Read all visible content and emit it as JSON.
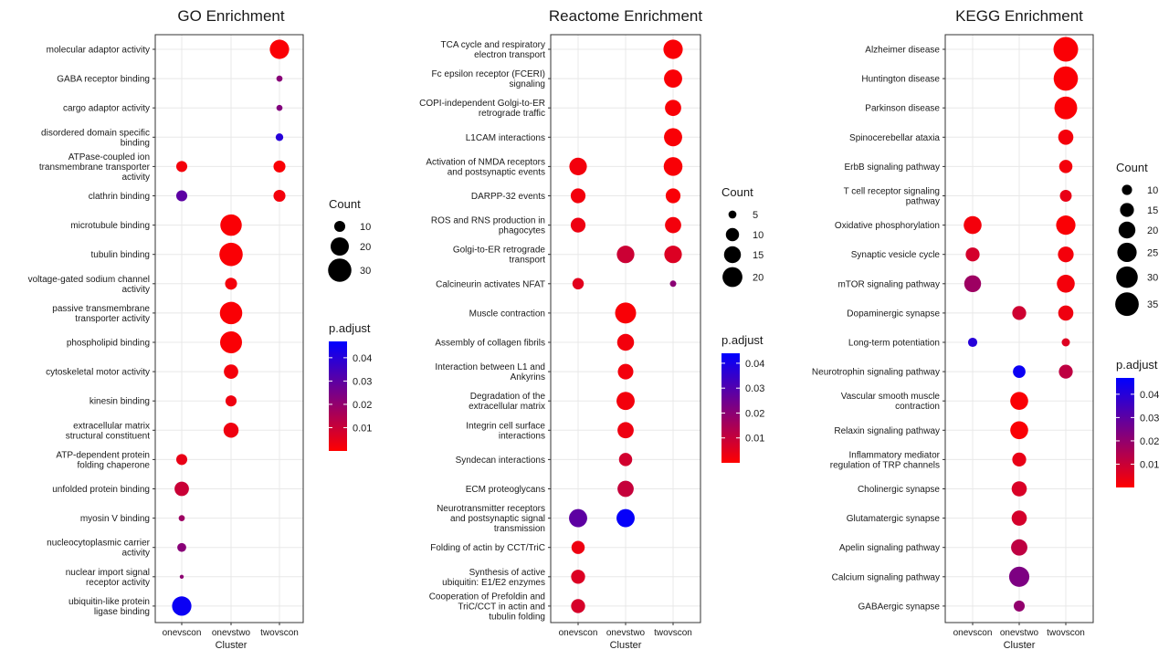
{
  "chart_data": [
    {
      "type": "scatter",
      "title": "GO Enrichment",
      "xlabel": "Cluster",
      "x_categories": [
        "onevscon",
        "onevstwo",
        "twovscon"
      ],
      "y_categories": [
        "molecular adaptor activity",
        "GABA receptor binding",
        "cargo adaptor activity",
        "disordered domain specific\nbinding",
        "ATPase-coupled ion\ntransmembrane transporter\nactivity",
        "clathrin binding",
        "microtubule binding",
        "tubulin binding",
        "voltage-gated sodium channel\nactivity",
        "passive transmembrane\ntransporter activity",
        "phospholipid binding",
        "cytoskeletal motor activity",
        "kinesin binding",
        "extracellular matrix\nstructural constituent",
        "ATP-dependent protein\nfolding chaperone",
        "unfolded protein binding",
        "myosin V binding",
        "nucleocytoplasmic carrier\nactivity",
        "nuclear import signal\nreceptor activity",
        "ubiquitin-like protein\nligase binding"
      ],
      "points": [
        {
          "x": "twovscon",
          "y": 0,
          "count": 22,
          "p_adjust": 0.001
        },
        {
          "x": "twovscon",
          "y": 1,
          "count": 6,
          "p_adjust": 0.022
        },
        {
          "x": "twovscon",
          "y": 2,
          "count": 6,
          "p_adjust": 0.023
        },
        {
          "x": "twovscon",
          "y": 3,
          "count": 7,
          "p_adjust": 0.04
        },
        {
          "x": "onevscon",
          "y": 4,
          "count": 10,
          "p_adjust": 0.002
        },
        {
          "x": "twovscon",
          "y": 4,
          "count": 11,
          "p_adjust": 0.001
        },
        {
          "x": "onevscon",
          "y": 5,
          "count": 10,
          "p_adjust": 0.03
        },
        {
          "x": "twovscon",
          "y": 5,
          "count": 11,
          "p_adjust": 0.002
        },
        {
          "x": "onevstwo",
          "y": 6,
          "count": 26,
          "p_adjust": 0.001
        },
        {
          "x": "onevstwo",
          "y": 7,
          "count": 30,
          "p_adjust": 0.001
        },
        {
          "x": "onevstwo",
          "y": 8,
          "count": 11,
          "p_adjust": 0.002
        },
        {
          "x": "onevstwo",
          "y": 9,
          "count": 28,
          "p_adjust": 0.001
        },
        {
          "x": "onevstwo",
          "y": 10,
          "count": 27,
          "p_adjust": 0.001
        },
        {
          "x": "onevstwo",
          "y": 11,
          "count": 14,
          "p_adjust": 0.002
        },
        {
          "x": "onevstwo",
          "y": 12,
          "count": 10,
          "p_adjust": 0.003
        },
        {
          "x": "onevstwo",
          "y": 13,
          "count": 15,
          "p_adjust": 0.003
        },
        {
          "x": "onevscon",
          "y": 14,
          "count": 10,
          "p_adjust": 0.004
        },
        {
          "x": "onevscon",
          "y": 15,
          "count": 14,
          "p_adjust": 0.01
        },
        {
          "x": "onevscon",
          "y": 16,
          "count": 6,
          "p_adjust": 0.018
        },
        {
          "x": "onevscon",
          "y": 17,
          "count": 8,
          "p_adjust": 0.022
        },
        {
          "x": "onevscon",
          "y": 18,
          "count": 5,
          "p_adjust": 0.021
        },
        {
          "x": "onevscon",
          "y": 19,
          "count": 22,
          "p_adjust": 0.045
        }
      ],
      "size_legend": {
        "title": "Count",
        "values": [
          10,
          20,
          30
        ]
      },
      "color_legend": {
        "title": "p.adjust",
        "ticks": [
          0.01,
          0.02,
          0.03,
          0.04
        ],
        "tick_labels": [
          "0.01",
          "0.02",
          "0.03",
          "0.04"
        ],
        "range": [
          0.0,
          0.047
        ],
        "low_color": "#ff0000",
        "high_color": "#0000ff"
      },
      "grid": true,
      "legend_position": "right"
    },
    {
      "type": "scatter",
      "title": "Reactome Enrichment",
      "xlabel": "Cluster",
      "x_categories": [
        "onevscon",
        "onevstwo",
        "twovscon"
      ],
      "y_categories": [
        "TCA cycle and respiratory\nelectron transport",
        "Fc epsilon receptor (FCERI)\nsignaling",
        "COPI-independent Golgi-to-ER\nretrograde traffic",
        "L1CAM interactions",
        "Activation of NMDA receptors\nand postsynaptic events",
        "DARPP-32 events",
        "ROS and RNS production in\nphagocytes",
        "Golgi-to-ER retrograde\ntransport",
        "Calcineurin activates NFAT",
        "Muscle contraction",
        "Assembly of collagen fibrils",
        "Interaction between L1 and\nAnkyrins",
        "Degradation of the\nextracellular matrix",
        "Integrin cell surface\ninteractions",
        "Syndecan interactions",
        "ECM proteoglycans",
        "Neurotransmitter receptors\nand postsynaptic signal\ntransmission",
        "Folding of actin by CCT/TriC",
        "Synthesis of active\nubiquitin: E1/E2 enzymes",
        "Cooperation of Prefoldin and\nTriC/CCT  in actin and\ntubulin folding"
      ],
      "points": [
        {
          "x": "twovscon",
          "y": 0,
          "count": 19,
          "p_adjust": 0.001
        },
        {
          "x": "twovscon",
          "y": 1,
          "count": 17,
          "p_adjust": 0.001
        },
        {
          "x": "twovscon",
          "y": 2,
          "count": 14,
          "p_adjust": 0.001
        },
        {
          "x": "twovscon",
          "y": 3,
          "count": 17,
          "p_adjust": 0.001
        },
        {
          "x": "onevscon",
          "y": 4,
          "count": 16,
          "p_adjust": 0.002
        },
        {
          "x": "twovscon",
          "y": 4,
          "count": 18,
          "p_adjust": 0.001
        },
        {
          "x": "onevscon",
          "y": 5,
          "count": 12,
          "p_adjust": 0.002
        },
        {
          "x": "twovscon",
          "y": 5,
          "count": 12,
          "p_adjust": 0.001
        },
        {
          "x": "onevscon",
          "y": 6,
          "count": 12,
          "p_adjust": 0.003
        },
        {
          "x": "twovscon",
          "y": 6,
          "count": 14,
          "p_adjust": 0.002
        },
        {
          "x": "onevstwo",
          "y": 7,
          "count": 16,
          "p_adjust": 0.009
        },
        {
          "x": "twovscon",
          "y": 7,
          "count": 16,
          "p_adjust": 0.006
        },
        {
          "x": "onevscon",
          "y": 8,
          "count": 8,
          "p_adjust": 0.005
        },
        {
          "x": "twovscon",
          "y": 8,
          "count": 4,
          "p_adjust": 0.02
        },
        {
          "x": "onevstwo",
          "y": 9,
          "count": 22,
          "p_adjust": 0.001
        },
        {
          "x": "onevstwo",
          "y": 10,
          "count": 15,
          "p_adjust": 0.002
        },
        {
          "x": "onevstwo",
          "y": 11,
          "count": 13,
          "p_adjust": 0.002
        },
        {
          "x": "onevstwo",
          "y": 12,
          "count": 17,
          "p_adjust": 0.002
        },
        {
          "x": "onevstwo",
          "y": 13,
          "count": 14,
          "p_adjust": 0.003
        },
        {
          "x": "onevstwo",
          "y": 14,
          "count": 10,
          "p_adjust": 0.008
        },
        {
          "x": "onevstwo",
          "y": 15,
          "count": 14,
          "p_adjust": 0.01
        },
        {
          "x": "onevscon",
          "y": 16,
          "count": 17,
          "p_adjust": 0.028
        },
        {
          "x": "onevstwo",
          "y": 16,
          "count": 17,
          "p_adjust": 0.043
        },
        {
          "x": "onevscon",
          "y": 17,
          "count": 10,
          "p_adjust": 0.003
        },
        {
          "x": "onevscon",
          "y": 18,
          "count": 11,
          "p_adjust": 0.006
        },
        {
          "x": "onevscon",
          "y": 19,
          "count": 11,
          "p_adjust": 0.007
        }
      ],
      "size_legend": {
        "title": "Count",
        "values": [
          5,
          10,
          15,
          20
        ]
      },
      "color_legend": {
        "title": "p.adjust",
        "ticks": [
          0.01,
          0.02,
          0.03,
          0.04
        ],
        "tick_labels": [
          "0.01",
          "0.02",
          "0.03",
          "0.04"
        ],
        "range": [
          0.0,
          0.044
        ],
        "low_color": "#ff0000",
        "high_color": "#0000ff"
      },
      "grid": true,
      "legend_position": "right"
    },
    {
      "type": "scatter",
      "title": "KEGG Enrichment",
      "xlabel": "Cluster",
      "x_categories": [
        "onevscon",
        "onevstwo",
        "twovscon"
      ],
      "y_categories": [
        "Alzheimer disease",
        "Huntington disease",
        "Parkinson disease",
        "Spinocerebellar ataxia",
        "ErbB signaling pathway",
        "T cell receptor signaling\npathway",
        "Oxidative phosphorylation",
        "Synaptic vesicle cycle",
        "mTOR signaling pathway",
        "Dopaminergic synapse",
        "Long-term potentiation",
        "Neurotrophin signaling pathway",
        "Vascular smooth muscle\ncontraction",
        "Relaxin signaling pathway",
        "Inflammatory mediator\nregulation of TRP channels",
        "Cholinergic synapse",
        "Glutamatergic synapse",
        "Apelin signaling pathway",
        "Calcium signaling pathway",
        "GABAergic synapse"
      ],
      "points": [
        {
          "x": "twovscon",
          "y": 0,
          "count": 38,
          "p_adjust": 0.001
        },
        {
          "x": "twovscon",
          "y": 1,
          "count": 37,
          "p_adjust": 0.001
        },
        {
          "x": "twovscon",
          "y": 2,
          "count": 33,
          "p_adjust": 0.001
        },
        {
          "x": "twovscon",
          "y": 3,
          "count": 17,
          "p_adjust": 0.002
        },
        {
          "x": "twovscon",
          "y": 4,
          "count": 14,
          "p_adjust": 0.002
        },
        {
          "x": "twovscon",
          "y": 5,
          "count": 12,
          "p_adjust": 0.004
        },
        {
          "x": "onevscon",
          "y": 6,
          "count": 22,
          "p_adjust": 0.002
        },
        {
          "x": "twovscon",
          "y": 6,
          "count": 25,
          "p_adjust": 0.001
        },
        {
          "x": "onevscon",
          "y": 7,
          "count": 15,
          "p_adjust": 0.008
        },
        {
          "x": "twovscon",
          "y": 7,
          "count": 18,
          "p_adjust": 0.002
        },
        {
          "x": "onevscon",
          "y": 8,
          "count": 20,
          "p_adjust": 0.018
        },
        {
          "x": "twovscon",
          "y": 8,
          "count": 22,
          "p_adjust": 0.002
        },
        {
          "x": "onevstwo",
          "y": 9,
          "count": 15,
          "p_adjust": 0.009
        },
        {
          "x": "twovscon",
          "y": 9,
          "count": 17,
          "p_adjust": 0.003
        },
        {
          "x": "onevscon",
          "y": 10,
          "count": 9,
          "p_adjust": 0.04
        },
        {
          "x": "twovscon",
          "y": 10,
          "count": 8,
          "p_adjust": 0.006
        },
        {
          "x": "onevstwo",
          "y": 11,
          "count": 13,
          "p_adjust": 0.045
        },
        {
          "x": "twovscon",
          "y": 11,
          "count": 15,
          "p_adjust": 0.012
        },
        {
          "x": "onevstwo",
          "y": 12,
          "count": 22,
          "p_adjust": 0.001
        },
        {
          "x": "onevstwo",
          "y": 13,
          "count": 22,
          "p_adjust": 0.001
        },
        {
          "x": "onevstwo",
          "y": 14,
          "count": 15,
          "p_adjust": 0.004
        },
        {
          "x": "onevstwo",
          "y": 15,
          "count": 17,
          "p_adjust": 0.007
        },
        {
          "x": "onevstwo",
          "y": 16,
          "count": 17,
          "p_adjust": 0.008
        },
        {
          "x": "onevstwo",
          "y": 17,
          "count": 19,
          "p_adjust": 0.012
        },
        {
          "x": "onevstwo",
          "y": 18,
          "count": 27,
          "p_adjust": 0.024
        },
        {
          "x": "onevstwo",
          "y": 19,
          "count": 11,
          "p_adjust": 0.02
        }
      ],
      "size_legend": {
        "title": "Count",
        "values": [
          10,
          15,
          20,
          25,
          30,
          35
        ]
      },
      "color_legend": {
        "title": "p.adjust",
        "ticks": [
          0.01,
          0.02,
          0.03,
          0.04
        ],
        "tick_labels": [
          "0.01",
          "0.02",
          "0.03",
          "0.04"
        ],
        "range": [
          0.0,
          0.047
        ],
        "low_color": "#ff0000",
        "high_color": "#0000ff"
      },
      "grid": true,
      "legend_position": "right"
    }
  ]
}
